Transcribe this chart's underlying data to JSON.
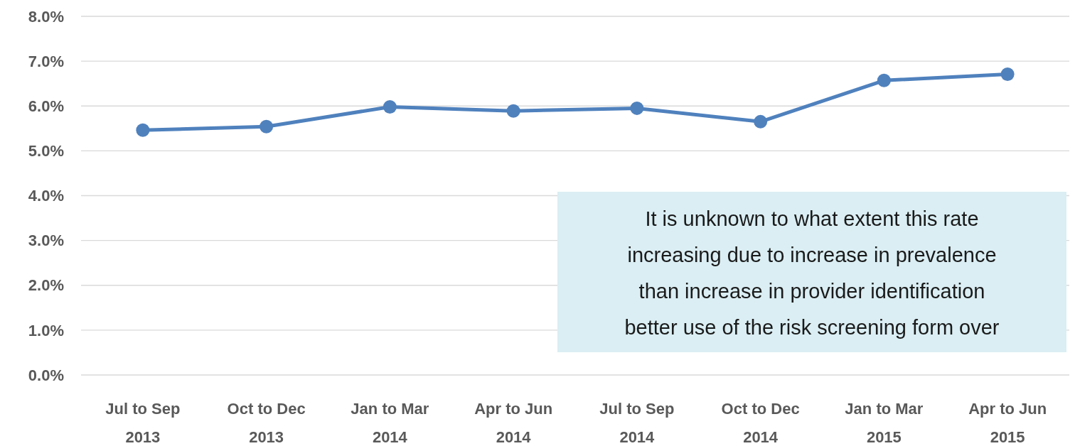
{
  "chart_data": {
    "type": "line",
    "categories": [
      "Jul to Sep\n2013",
      "Oct to Dec\n2013",
      "Jan to Mar\n2014",
      "Apr to Jun\n2014",
      "Jul to Sep\n2014",
      "Oct to Dec\n2014",
      "Jan to Mar\n2015",
      "Apr to Jun\n2015"
    ],
    "series": [
      {
        "color": "#4f81bd",
        "values": [
          5.46,
          5.54,
          5.98,
          5.89,
          5.95,
          5.65,
          6.57,
          6.71
        ]
      }
    ],
    "ylim": [
      0,
      8
    ],
    "yticks": [
      {
        "value": 0,
        "label": "0.0%"
      },
      {
        "value": 1,
        "label": "1.0%"
      },
      {
        "value": 2,
        "label": "2.0%"
      },
      {
        "value": 3,
        "label": "3.0%"
      },
      {
        "value": 4,
        "label": "4.0%"
      },
      {
        "value": 5,
        "label": "5.0%"
      },
      {
        "value": 6,
        "label": "6.0%"
      },
      {
        "value": 7,
        "label": "7.0%"
      },
      {
        "value": 8,
        "label": "8.0%"
      }
    ],
    "grid": "y",
    "marker": "circle",
    "line_style": "solid",
    "annotations": [
      "It is unknown to what extent this rate\nincreasing due to increase in prevalence\nthan increase in provider identification\nbetter use of the risk screening form over"
    ]
  }
}
